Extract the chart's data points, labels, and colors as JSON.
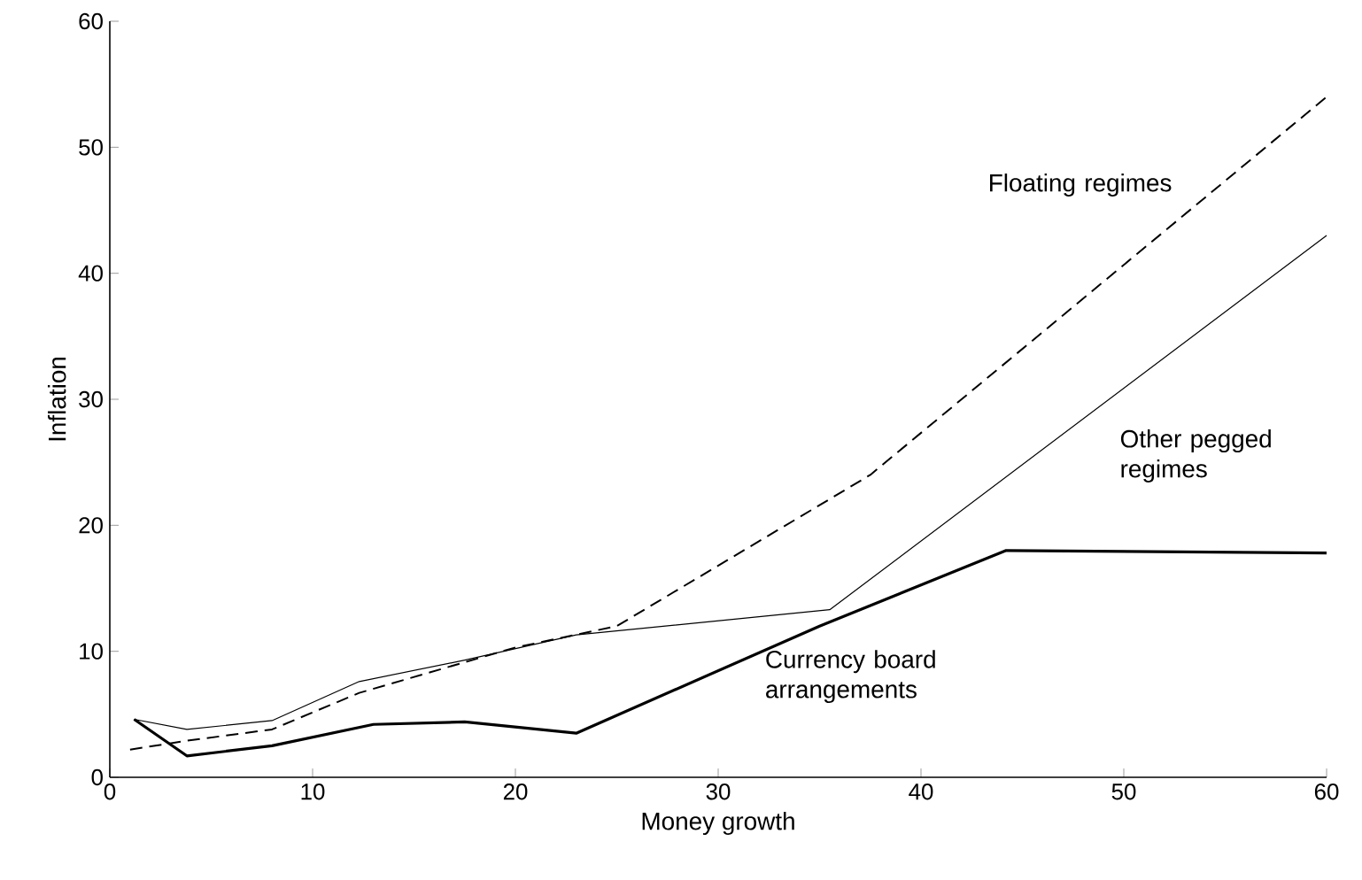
{
  "chart_data": {
    "type": "line",
    "xlabel": "Money growth",
    "ylabel": "Inflation",
    "xlim": [
      0,
      60
    ],
    "ylim": [
      0,
      60
    ],
    "xticks": [
      0,
      10,
      20,
      30,
      40,
      50,
      60
    ],
    "yticks": [
      0,
      10,
      20,
      30,
      40,
      50,
      60
    ],
    "grid": false,
    "legend": false,
    "marker": "none",
    "series": [
      {
        "name": "Floating regimes",
        "color": "#000000",
        "line_style": "dashed",
        "x": [
          1,
          3.8,
          8,
          12.3,
          20,
          25,
          37.5,
          60
        ],
        "values": [
          2.2,
          2.9,
          3.8,
          6.7,
          10.3,
          12,
          24,
          54
        ]
      },
      {
        "name": "Other pegged regimes",
        "color": "#000000",
        "line_style": "solid",
        "x": [
          1.2,
          3.8,
          8,
          12.3,
          17.5,
          23,
          35.5,
          60
        ],
        "values": [
          4.6,
          3.8,
          4.5,
          7.6,
          9.3,
          11.3,
          13.3,
          43
        ]
      },
      {
        "name": "Currency board arrangements",
        "color": "#000000",
        "line_style": "solid",
        "x": [
          1.2,
          3.8,
          8,
          13,
          17.5,
          23,
          35,
          44.2,
          60
        ],
        "values": [
          4.6,
          1.7,
          2.5,
          4.2,
          4.4,
          3.5,
          12,
          18,
          17.8
        ]
      }
    ]
  }
}
